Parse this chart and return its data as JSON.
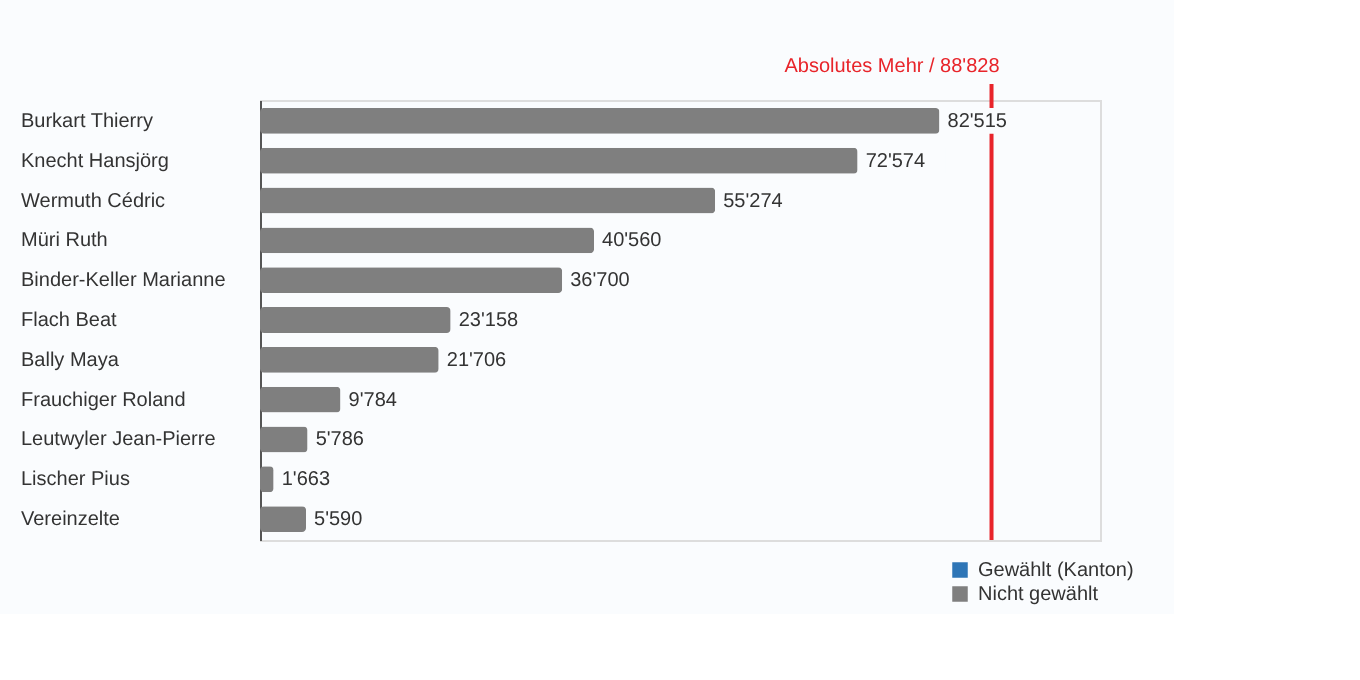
{
  "chart_data": {
    "type": "bar",
    "orientation": "horizontal",
    "categories": [
      "Burkart Thierry",
      "Knecht Hansjörg",
      "Wermuth Cédric",
      "Müri Ruth",
      "Binder-Keller Marianne",
      "Flach Beat",
      "Bally Maya",
      "Frauchiger Roland",
      "Leutwyler Jean-Pierre",
      "Lischer Pius",
      "Vereinzelte"
    ],
    "series": [
      {
        "name": "Gewählt (Kanton)",
        "color": "#2e75b6",
        "values": [
          null,
          null,
          null,
          null,
          null,
          null,
          null,
          null,
          null,
          null,
          null
        ]
      },
      {
        "name": "Nicht gewählt",
        "color": "#7f7f7f",
        "values": [
          82515,
          72574,
          55274,
          40560,
          36700,
          23158,
          21706,
          9784,
          5786,
          1663,
          5590
        ],
        "value_labels": [
          "82'515",
          "72'574",
          "55'274",
          "40'560",
          "36'700",
          "23'158",
          "21'706",
          "9'784",
          "5'786",
          "1'663",
          "5'590"
        ]
      }
    ],
    "xlim": [
      0,
      102000
    ],
    "ref_lines": [
      {
        "axis": "x",
        "value": 88828,
        "label": "Absolutes Mehr / 88'828",
        "color": "#e8242a"
      }
    ],
    "legend": "bottom right",
    "grid": false,
    "tick_labels": "y"
  }
}
